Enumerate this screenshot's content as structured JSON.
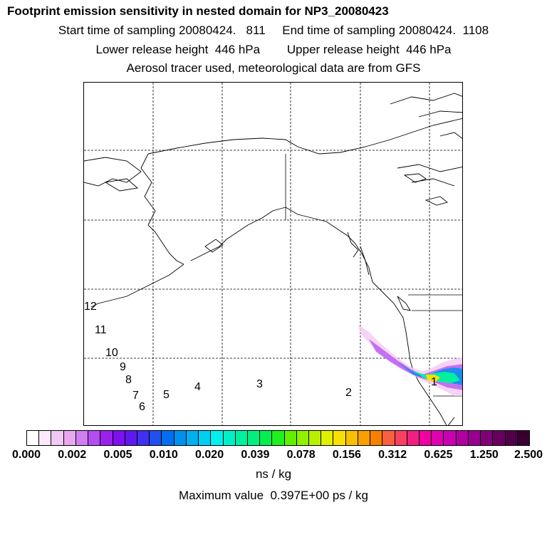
{
  "titles": [
    "Footprint emission sensitivity in nested domain for NP3_20080423",
    "Start time of sampling 20080424.   811     End time of sampling 20080424.  1108",
    "Lower release height  446 hPa        Upper release height  446 hPa",
    "Aerosol tracer used, meteorological data are from GFS"
  ],
  "map": {
    "labels": [
      "1",
      "2",
      "3",
      "4",
      "5",
      "6",
      "7",
      "8",
      "9",
      "10",
      "11",
      "12"
    ]
  },
  "colorbar": {
    "colors": [
      "#ffffff",
      "#fbe8fb",
      "#f2c9f2",
      "#e8a7ef",
      "#cf7ff0",
      "#b44df0",
      "#9b20ee",
      "#7f10f0",
      "#6018f0",
      "#4030f0",
      "#2050f0",
      "#0070f0",
      "#0090f0",
      "#00b0f0",
      "#00d0f0",
      "#00f0f0",
      "#00f0c8",
      "#00f0a0",
      "#00f080",
      "#00f050",
      "#20f020",
      "#60f000",
      "#90f000",
      "#b8f000",
      "#e0f000",
      "#f8e000",
      "#f8c000",
      "#f8a000",
      "#f88000",
      "#f86040",
      "#f84060",
      "#f02080",
      "#f000a0",
      "#e000b0",
      "#c800b0",
      "#b000a0",
      "#980090",
      "#800078",
      "#680060",
      "#500048",
      "#380030"
    ],
    "tick_labels": [
      "0.000",
      "0.002",
      "0.005",
      "0.010",
      "0.020",
      "0.039",
      "0.078",
      "0.156",
      "0.312",
      "0.625",
      "1.250",
      "2.500"
    ],
    "units": "ns / kg"
  },
  "max_value_text": "Maximum value  0.397E+00 ps / kg"
}
